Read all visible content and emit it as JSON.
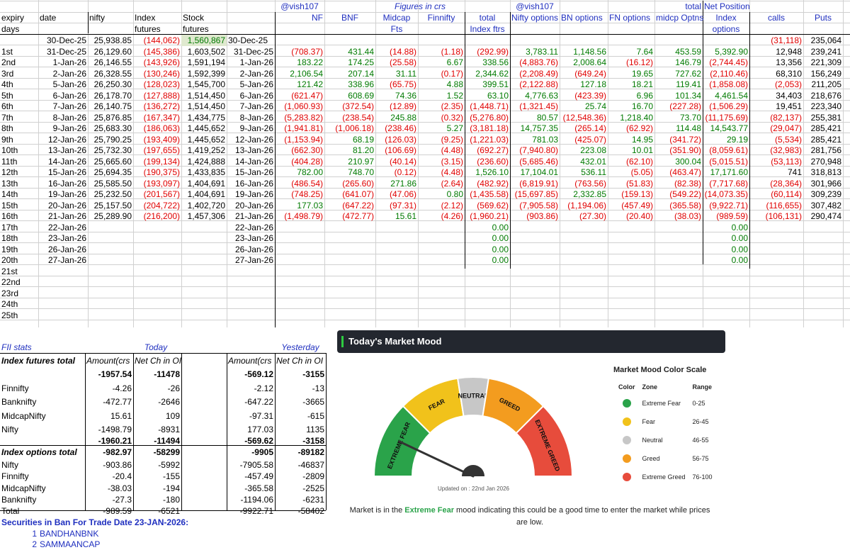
{
  "header_row1": {
    "handle_left": "@vish107",
    "figures": "Figures in crs",
    "handle_right": "@vish107",
    "total": "total",
    "net_position": "Net Position"
  },
  "header_row2": {
    "expiry": "expiry",
    "date": "date",
    "nifty": "nifty",
    "index": "Index",
    "stock": "Stock",
    "nf": "NF",
    "bnf": "BNF",
    "midcap": "Midcap",
    "finnifty": "Finnifty",
    "total": "total",
    "nifty_options": "Nifty options",
    "bn_options": "BN options",
    "fn_options": "FN options",
    "midcp_optns": "midcp Optns",
    "index2": "Index",
    "calls": "calls",
    "puts": "Puts"
  },
  "header_row3": {
    "days": "days",
    "futures1": "futures",
    "futures2": "futures",
    "fts": "Fts",
    "index_ftrs": "Index ftrs",
    "options": "options"
  },
  "first_row": {
    "date": "30-Dec-25",
    "nifty": "25,938.85",
    "idx": "(144,062)",
    "stk": "1,560,867",
    "date2": "30-Dec-25",
    "calls": "(31,118)",
    "puts": "235,064"
  },
  "rows": [
    {
      "exp": "1st",
      "date": "31-Dec-25",
      "nifty": "26,129.60",
      "idx": "(145,386)",
      "stk": "1,603,502",
      "date2": "31-Dec-25",
      "nf": "(708.37)",
      "bnf": "431.44",
      "mid": "(14.88)",
      "fin": "(1.18)",
      "tot": "(292.99)",
      "nopt": "3,783.11",
      "bnopt": "1,148.56",
      "fnopt": "7.64",
      "midopt": "453.59",
      "idxopt": "5,392.90",
      "calls": "12,948",
      "puts": "239,241"
    },
    {
      "exp": "2nd",
      "date": "1-Jan-26",
      "nifty": "26,146.55",
      "idx": "(143,926)",
      "stk": "1,591,194",
      "date2": "1-Jan-26",
      "nf": "183.22",
      "bnf": "174.25",
      "mid": "(25.58)",
      "fin": "6.67",
      "tot": "338.56",
      "nopt": "(4,883.76)",
      "bnopt": "2,008.64",
      "fnopt": "(16.12)",
      "midopt": "146.79",
      "idxopt": "(2,744.45)",
      "calls": "13,356",
      "puts": "221,309"
    },
    {
      "exp": "3rd",
      "date": "2-Jan-26",
      "nifty": "26,328.55",
      "idx": "(130,246)",
      "stk": "1,592,399",
      "date2": "2-Jan-26",
      "nf": "2,106.54",
      "bnf": "207.14",
      "mid": "31.11",
      "fin": "(0.17)",
      "tot": "2,344.62",
      "nopt": "(2,208.49)",
      "bnopt": "(649.24)",
      "fnopt": "19.65",
      "midopt": "727.62",
      "idxopt": "(2,110.46)",
      "calls": "68,310",
      "puts": "156,249"
    },
    {
      "exp": "4th",
      "date": "5-Jan-26",
      "nifty": "26,250.30",
      "idx": "(128,023)",
      "stk": "1,545,700",
      "date2": "5-Jan-26",
      "nf": "121.42",
      "bnf": "338.96",
      "mid": "(65.75)",
      "fin": "4.88",
      "tot": "399.51",
      "nopt": "(2,122.88)",
      "bnopt": "127.18",
      "fnopt": "18.21",
      "midopt": "119.41",
      "idxopt": "(1,858.08)",
      "calls": "(2,053)",
      "puts": "211,205"
    },
    {
      "exp": "5th",
      "date": "6-Jan-26",
      "nifty": "26,178.70",
      "idx": "(127,888)",
      "stk": "1,514,450",
      "date2": "6-Jan-26",
      "nf": "(621.47)",
      "bnf": "608.69",
      "mid": "74.36",
      "fin": "1.52",
      "tot": "63.10",
      "nopt": "4,776.63",
      "bnopt": "(423.39)",
      "fnopt": "6.96",
      "midopt": "101.34",
      "idxopt": "4,461.54",
      "calls": "34,403",
      "puts": "218,676"
    },
    {
      "exp": "6th",
      "date": "7-Jan-26",
      "nifty": "26,140.75",
      "idx": "(136,272)",
      "stk": "1,514,450",
      "date2": "7-Jan-26",
      "nf": "(1,060.93)",
      "bnf": "(372.54)",
      "mid": "(12.89)",
      "fin": "(2.35)",
      "tot": "(1,448.71)",
      "nopt": "(1,321.45)",
      "bnopt": "25.74",
      "fnopt": "16.70",
      "midopt": "(227.28)",
      "idxopt": "(1,506.29)",
      "calls": "19,451",
      "puts": "223,340"
    },
    {
      "exp": "7th",
      "date": "8-Jan-26",
      "nifty": "25,876.85",
      "idx": "(167,347)",
      "stk": "1,434,775",
      "date2": "8-Jan-26",
      "nf": "(5,283.82)",
      "bnf": "(238.54)",
      "mid": "245.88",
      "fin": "(0.32)",
      "tot": "(5,276.80)",
      "nopt": "80.57",
      "bnopt": "(12,548.36)",
      "fnopt": "1,218.40",
      "midopt": "73.70",
      "idxopt": "(11,175.69)",
      "calls": "(82,137)",
      "puts": "255,381"
    },
    {
      "exp": "8th",
      "date": "9-Jan-26",
      "nifty": "25,683.30",
      "idx": "(186,063)",
      "stk": "1,445,652",
      "date2": "9-Jan-26",
      "nf": "(1,941.81)",
      "bnf": "(1,006.18)",
      "mid": "(238.46)",
      "fin": "5.27",
      "tot": "(3,181.18)",
      "nopt": "14,757.35",
      "bnopt": "(265.14)",
      "fnopt": "(62.92)",
      "midopt": "114.48",
      "idxopt": "14,543.77",
      "calls": "(29,047)",
      "puts": "285,421"
    },
    {
      "exp": "9th",
      "date": "12-Jan-26",
      "nifty": "25,790.25",
      "idx": "(193,409)",
      "stk": "1,445,652",
      "date2": "12-Jan-26",
      "nf": "(1,153.94)",
      "bnf": "68.19",
      "mid": "(126.03)",
      "fin": "(9.25)",
      "tot": "(1,221.03)",
      "nopt": "781.03",
      "bnopt": "(425.07)",
      "fnopt": "14.95",
      "midopt": "(341.72)",
      "idxopt": "29.19",
      "calls": "(5,534)",
      "puts": "285,421"
    },
    {
      "exp": "10th",
      "date": "13-Jan-26",
      "nifty": "25,732.30",
      "idx": "(197,655)",
      "stk": "1,419,252",
      "date2": "13-Jan-26",
      "nf": "(662.30)",
      "bnf": "81.20",
      "mid": "(106.69)",
      "fin": "(4.48)",
      "tot": "(692.27)",
      "nopt": "(7,940.80)",
      "bnopt": "223.08",
      "fnopt": "10.01",
      "midopt": "(351.90)",
      "idxopt": "(8,059.61)",
      "calls": "(32,983)",
      "puts": "281,756"
    },
    {
      "exp": "11th",
      "date": "14-Jan-26",
      "nifty": "25,665.60",
      "idx": "(199,134)",
      "stk": "1,424,888",
      "date2": "14-Jan-26",
      "nf": "(404.28)",
      "bnf": "210.97",
      "mid": "(40.14)",
      "fin": "(3.15)",
      "tot": "(236.60)",
      "nopt": "(5,685.46)",
      "bnopt": "432.01",
      "fnopt": "(62.10)",
      "midopt": "300.04",
      "idxopt": "(5,015.51)",
      "calls": "(53,113)",
      "puts": "270,948"
    },
    {
      "exp": "12th",
      "date": "15-Jan-26",
      "nifty": "25,694.35",
      "idx": "(190,375)",
      "stk": "1,433,835",
      "date2": "15-Jan-26",
      "nf": "782.00",
      "bnf": "748.70",
      "mid": "(0.12)",
      "fin": "(4.48)",
      "tot": "1,526.10",
      "nopt": "17,104.01",
      "bnopt": "536.11",
      "fnopt": "(5.05)",
      "midopt": "(463.47)",
      "idxopt": "17,171.60",
      "calls": "741",
      "puts": "318,813"
    },
    {
      "exp": "13th",
      "date": "16-Jan-26",
      "nifty": "25,585.50",
      "idx": "(193,097)",
      "stk": "1,404,691",
      "date2": "16-Jan-26",
      "nf": "(486.54)",
      "bnf": "(265.60)",
      "mid": "271.86",
      "fin": "(2.64)",
      "tot": "(482.92)",
      "nopt": "(6,819.91)",
      "bnopt": "(763.56)",
      "fnopt": "(51.83)",
      "midopt": "(82.38)",
      "idxopt": "(7,717.68)",
      "calls": "(28,364)",
      "puts": "301,966"
    },
    {
      "exp": "14th",
      "date": "19-Jan-26",
      "nifty": "25,232.50",
      "idx": "(201,567)",
      "stk": "1,404,691",
      "date2": "19-Jan-26",
      "nf": "(748.25)",
      "bnf": "(641.07)",
      "mid": "(47.06)",
      "fin": "0.80",
      "tot": "(1,435.58)",
      "nopt": "(15,697.85)",
      "bnopt": "2,332.85",
      "fnopt": "(159.13)",
      "midopt": "(549.22)",
      "idxopt": "(14,073.35)",
      "calls": "(60,114)",
      "puts": "309,239"
    },
    {
      "exp": "15th",
      "date": "20-Jan-26",
      "nifty": "25,157.50",
      "idx": "(204,722)",
      "stk": "1,402,720",
      "date2": "20-Jan-26",
      "nf": "177.03",
      "bnf": "(647.22)",
      "mid": "(97.31)",
      "fin": "(2.12)",
      "tot": "(569.62)",
      "nopt": "(7,905.58)",
      "bnopt": "(1,194.06)",
      "fnopt": "(457.49)",
      "midopt": "(365.58)",
      "idxopt": "(9,922.71)",
      "calls": "(116,655)",
      "puts": "307,482"
    },
    {
      "exp": "16th",
      "date": "21-Jan-26",
      "nifty": "25,289.90",
      "idx": "(216,200)",
      "stk": "1,457,306",
      "date2": "21-Jan-26",
      "nf": "(1,498.79)",
      "bnf": "(472.77)",
      "mid": "15.61",
      "fin": "(4.26)",
      "tot": "(1,960.21)",
      "nopt": "(903.86)",
      "bnopt": "(27.30)",
      "fnopt": "(20.40)",
      "midopt": "(38.03)",
      "idxopt": "(989.59)",
      "calls": "(106,131)",
      "puts": "290,474"
    },
    {
      "exp": "17th",
      "date": "22-Jan-26",
      "date2": "22-Jan-26",
      "tot": "0.00",
      "idxopt": "0.00"
    },
    {
      "exp": "18th",
      "date": "23-Jan-26",
      "date2": "23-Jan-26",
      "tot": "0.00",
      "idxopt": "0.00"
    },
    {
      "exp": "19th",
      "date": "26-Jan-26",
      "date2": "26-Jan-26",
      "tot": "0.00",
      "idxopt": "0.00"
    },
    {
      "exp": "20th",
      "date": "27-Jan-26",
      "date2": "27-Jan-26",
      "tot": "0.00",
      "idxopt": "0.00"
    },
    {
      "exp": "21st"
    },
    {
      "exp": "22nd"
    },
    {
      "exp": "23rd"
    },
    {
      "exp": "24th"
    },
    {
      "exp": "25th"
    }
  ],
  "fii": {
    "title": "FII stats",
    "today": "Today",
    "yesterday": "Yesterday",
    "idx_fut_total": "Index futures total",
    "amount_hdr": "Amount(crs",
    "netch_hdr": "Net Ch in OI",
    "amount_hdr_y": "Amount(crs",
    "netch_hdr_y": "Net Ch in OI",
    "idxfut_amt": "-1957.54",
    "idxfut_oi": "-11478",
    "idxfut_amt_y": "-569.12",
    "idxfut_oi_y": "-3155",
    "fut_rows": [
      {
        "name": "Finnifty",
        "amt": "-4.26",
        "oi": "-26",
        "amt_y": "-2.12",
        "oi_y": "-13"
      },
      {
        "name": "Banknifty",
        "amt": "-472.77",
        "oi": "-2646",
        "amt_y": "-647.22",
        "oi_y": "-3665"
      },
      {
        "name": "MidcapNifty",
        "amt": "15.61",
        "oi": "109",
        "amt_y": "-97.31",
        "oi_y": "-615"
      },
      {
        "name": "Nifty",
        "amt": "-1498.79",
        "oi": "-8931",
        "amt_y": "177.03",
        "oi_y": "1135"
      }
    ],
    "fut_sum": {
      "amt": "-1960.21",
      "oi": "-11494",
      "amt_y": "-569.62",
      "oi_y": "-3158"
    },
    "idx_opt_total": "Index options total",
    "opt_amt": "-982.97",
    "opt_oi": "-58299",
    "opt_amt_y": "-9905",
    "opt_oi_y": "-89182",
    "opt_rows": [
      {
        "name": "Nifty",
        "amt": "-903.86",
        "oi": "-5992",
        "amt_y": "-7905.58",
        "oi_y": "-46837"
      },
      {
        "name": "Finnifty",
        "amt": "-20.4",
        "oi": "-155",
        "amt_y": "-457.49",
        "oi_y": "-2809"
      },
      {
        "name": "MidcapNifty",
        "amt": "-38.03",
        "oi": "-194",
        "amt_y": "-365.58",
        "oi_y": "-2525"
      },
      {
        "name": "Banknifty",
        "amt": "-27.3",
        "oi": "-180",
        "amt_y": "-1194.06",
        "oi_y": "-6231"
      },
      {
        "name": "Total",
        "amt": "-989.59",
        "oi": "-6521",
        "amt_y": "-9922.71",
        "oi_y": "-58402"
      }
    ],
    "ban_title": "Securities in Ban For Trade Date 23-JAN-2026:",
    "ban": [
      {
        "n": "1",
        "name": "BANDHANBNK"
      },
      {
        "n": "2",
        "name": "SAMMAANCAP"
      }
    ]
  },
  "mood": {
    "title": "Today's Market Mood",
    "scale_title": "Market Mood Color Scale",
    "cols": {
      "color": "Color",
      "zone": "Zone",
      "range": "Range"
    },
    "zones": [
      {
        "zone": "Extreme Fear",
        "range": "0-25",
        "color": "#2aa34a"
      },
      {
        "zone": "Fear",
        "range": "26-45",
        "color": "#f1c21b"
      },
      {
        "zone": "Neutral",
        "range": "46-55",
        "color": "#c7c7c7"
      },
      {
        "zone": "Greed",
        "range": "56-75",
        "color": "#f39c1f"
      },
      {
        "zone": "Extreme Greed",
        "range": "76-100",
        "color": "#e74c3c"
      }
    ],
    "gauge_labels": {
      "extreme_fear": "EXTREME FEAR",
      "fear": "FEAR",
      "neutral": "NEUTRAL",
      "greed": "GREED",
      "extreme_greed": "EXTREME GREED"
    },
    "value": 14,
    "updated": "Updated on : 22nd Jan 2026",
    "msg_pre": "Market is in the ",
    "msg_zone": "Extreme Fear",
    "msg_post": " mood indicating this could be a good time to enter the market while prices are low."
  }
}
